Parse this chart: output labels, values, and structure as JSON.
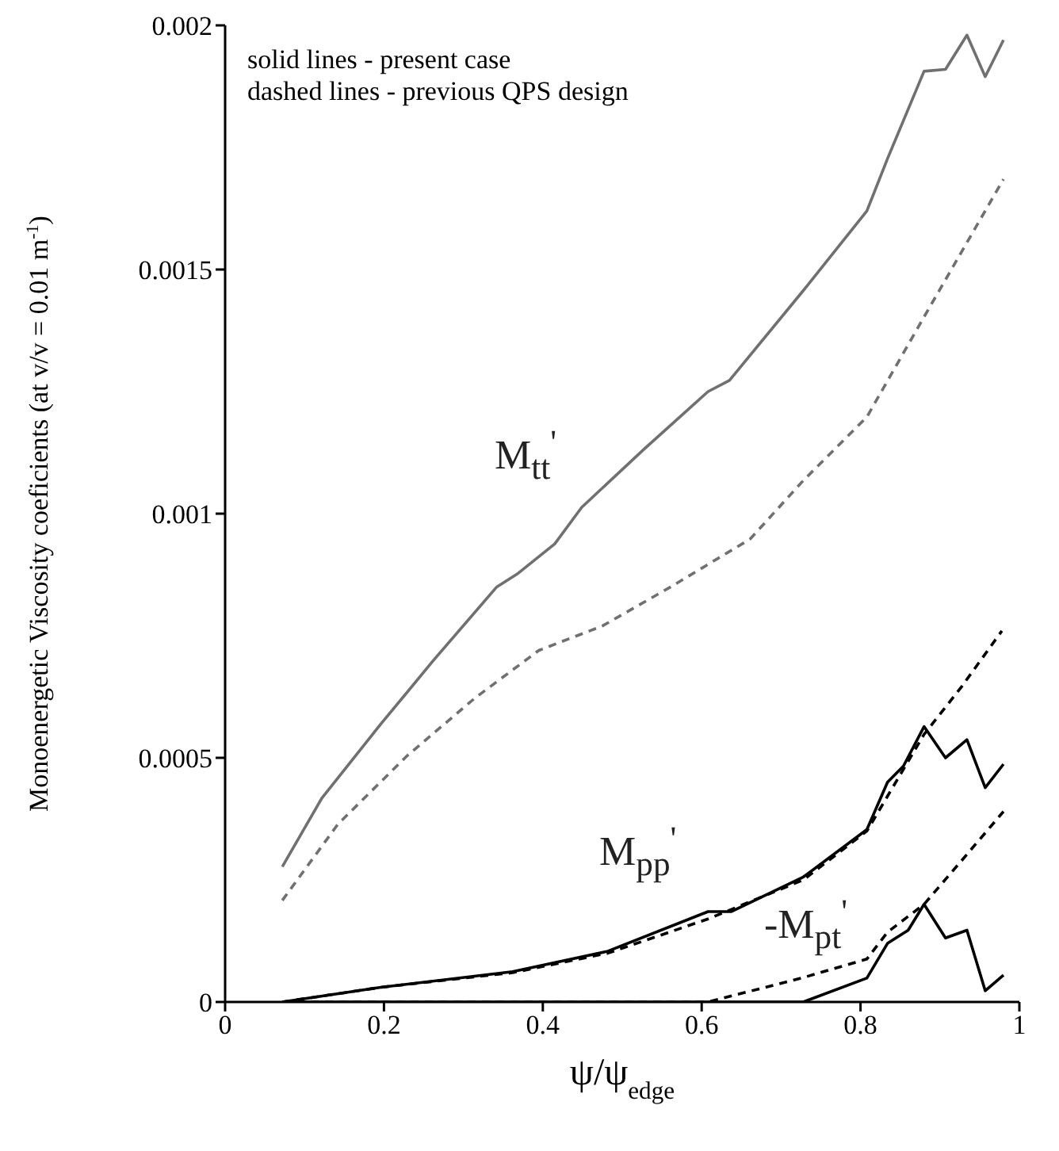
{
  "chart_data": {
    "type": "line",
    "xlabel": "ψ/ψ$_{edge}$",
    "ylabel": "Monoenergetic Viscosity coeficients (at v/v = 0.01 m$^{-1}$)",
    "xlim": [
      0,
      1
    ],
    "xticks": [
      0,
      0.2,
      0.4,
      0.6,
      0.8,
      1
    ],
    "ylim": [
      0,
      0.002
    ],
    "yticks": [
      0,
      0.0005,
      0.001,
      0.0015,
      0.002
    ],
    "marker": "none",
    "annotations": [
      "solid lines - present case",
      "dashed lines - previous QPS design",
      "M$_{tt}$$^{'}$",
      "M$_{pp}$$^{'}$",
      "-M$_{pt}$$^{'}$"
    ],
    "series": [
      {
        "color": "#707070",
        "line_style": "solid",
        "x": [
          0.072,
          0.122,
          0.196,
          0.262,
          0.342,
          0.369,
          0.415,
          0.449,
          0.528,
          0.608,
          0.635,
          0.728,
          0.808,
          0.834,
          0.88,
          0.907,
          0.934,
          0.957,
          0.98
        ],
        "values": [
          0.000277,
          0.000418,
          0.000569,
          0.000699,
          0.00085,
          0.000878,
          0.000938,
          0.001013,
          0.001133,
          0.00125,
          0.001273,
          0.001457,
          0.00162,
          0.001727,
          0.001906,
          0.00191,
          0.00198,
          0.001895,
          0.00197
        ]
      },
      {
        "color": "#707070",
        "line_style": "dashed",
        "x": [
          0.072,
          0.142,
          0.229,
          0.315,
          0.395,
          0.475,
          0.561,
          0.661,
          0.728,
          0.808,
          0.88,
          0.98
        ],
        "values": [
          0.000208,
          0.000364,
          0.000504,
          0.000623,
          0.00072,
          0.00077,
          0.00085,
          0.000948,
          0.001068,
          0.001198,
          0.001403,
          0.001685
        ]
      },
      {
        "color": "#000000",
        "line_style": "solid",
        "x": [
          0.072,
          0.196,
          0.362,
          0.482,
          0.608,
          0.637,
          0.728,
          0.808,
          0.834,
          0.854,
          0.88,
          0.907,
          0.934,
          0.957,
          0.98
        ],
        "values": [
          0,
          3e-05,
          6.2e-05,
          0.000104,
          0.000185,
          0.000185,
          0.000256,
          0.000353,
          0.00045,
          0.000483,
          0.000564,
          0.0005,
          0.000537,
          0.000439,
          0.000487
        ]
      },
      {
        "color": "#000000",
        "line_style": "dashed",
        "x": [
          0.072,
          0.196,
          0.362,
          0.482,
          0.608,
          0.728,
          0.808,
          0.88,
          0.927,
          0.978
        ],
        "values": [
          0,
          3e-05,
          6e-05,
          0.0001,
          0.00017,
          0.00025,
          0.00035,
          0.000548,
          0.000645,
          0.00076
        ]
      },
      {
        "color": "#000000",
        "line_style": "solid",
        "x": [
          0.072,
          0.68,
          0.728,
          0.808,
          0.834,
          0.86,
          0.88,
          0.907,
          0.934,
          0.957,
          0.98
        ],
        "values": [
          0,
          0,
          0,
          4.9e-05,
          0.00012,
          0.000147,
          0.0002,
          0.000131,
          0.000147,
          2.3e-05,
          5.5e-05
        ]
      },
      {
        "color": "#000000",
        "line_style": "dashed",
        "x": [
          0.072,
          0.608,
          0.728,
          0.808,
          0.834,
          0.88,
          0.927,
          0.98
        ],
        "values": [
          0,
          0,
          5e-05,
          8.8e-05,
          0.000143,
          0.0002,
          0.000289,
          0.00039
        ]
      }
    ]
  }
}
